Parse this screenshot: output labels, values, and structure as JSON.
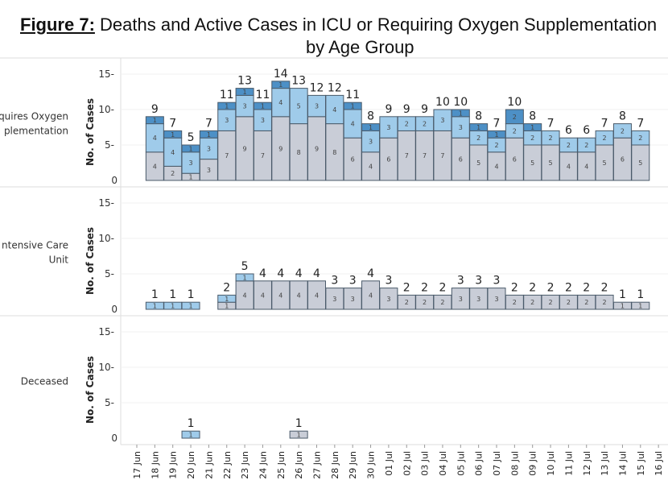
{
  "title": {
    "figure": "Figure 7:",
    "line1": " Deaths and Active Cases in ICU or Requiring Oxygen Supplementation",
    "line2": "by Age Group"
  },
  "colors": {
    "segment_1": "#c9cdd7",
    "segment_2": "#9fcbea",
    "segment_3": "#4d90c6"
  },
  "chart_data": {
    "type": "bar",
    "stacked": true,
    "dates": [
      "17 Jun",
      "18 Jun",
      "19 Jun",
      "20 Jun",
      "21 Jun",
      "22 Jun",
      "23 Jun",
      "24 Jun",
      "25 Jun",
      "26 Jun",
      "27 Jun",
      "28 Jun",
      "29 Jun",
      "30 Jun",
      "01 Jul",
      "02 Jul",
      "03 Jul",
      "04 Jul",
      "05 Jul",
      "06 Jul",
      "07 Jul",
      "08 Jul",
      "09 Jul",
      "10 Jul",
      "11 Jul",
      "12 Jul",
      "13 Jul",
      "14 Jul",
      "15 Jul",
      "16 Jul"
    ],
    "ylabel": "No. of Cases",
    "yticks": [
      0,
      5,
      10,
      15
    ],
    "ylim": [
      0,
      16
    ],
    "panels": [
      {
        "label_lines": [
          "quires Oxygen",
          "plementation"
        ],
        "stacks": [
          [
            0,
            0,
            0
          ],
          [
            4,
            4,
            1
          ],
          [
            2,
            4,
            1
          ],
          [
            1,
            3,
            1
          ],
          [
            3,
            3,
            1
          ],
          [
            7,
            3,
            1
          ],
          [
            9,
            3,
            1
          ],
          [
            7,
            3,
            1
          ],
          [
            9,
            4,
            1
          ],
          [
            8,
            5,
            0
          ],
          [
            9,
            3,
            0
          ],
          [
            8,
            4,
            0
          ],
          [
            6,
            4,
            1
          ],
          [
            4,
            3,
            1
          ],
          [
            6,
            3,
            0
          ],
          [
            7,
            2,
            0
          ],
          [
            7,
            2,
            0
          ],
          [
            7,
            3,
            0
          ],
          [
            6,
            3,
            1
          ],
          [
            5,
            2,
            1
          ],
          [
            4,
            2,
            1
          ],
          [
            6,
            2,
            2
          ],
          [
            5,
            2,
            1
          ],
          [
            5,
            2,
            0
          ],
          [
            4,
            2,
            0
          ],
          [
            4,
            2,
            0
          ],
          [
            5,
            2,
            0
          ],
          [
            6,
            2,
            0
          ],
          [
            5,
            2,
            0
          ],
          [
            0,
            0,
            0
          ]
        ]
      },
      {
        "label_lines": [
          "ntensive Care",
          "Unit"
        ],
        "stacks": [
          [
            0,
            0,
            0
          ],
          [
            0,
            1,
            0
          ],
          [
            0,
            1,
            0
          ],
          [
            0,
            1,
            0
          ],
          [
            0,
            0,
            0
          ],
          [
            1,
            1,
            0
          ],
          [
            4,
            1,
            0
          ],
          [
            4,
            0,
            0
          ],
          [
            4,
            0,
            0
          ],
          [
            4,
            0,
            0
          ],
          [
            4,
            0,
            0
          ],
          [
            3,
            0,
            0
          ],
          [
            3,
            0,
            0
          ],
          [
            4,
            0,
            0
          ],
          [
            3,
            0,
            0
          ],
          [
            2,
            0,
            0
          ],
          [
            2,
            0,
            0
          ],
          [
            2,
            0,
            0
          ],
          [
            3,
            0,
            0
          ],
          [
            3,
            0,
            0
          ],
          [
            3,
            0,
            0
          ],
          [
            2,
            0,
            0
          ],
          [
            2,
            0,
            0
          ],
          [
            2,
            0,
            0
          ],
          [
            2,
            0,
            0
          ],
          [
            2,
            0,
            0
          ],
          [
            2,
            0,
            0
          ],
          [
            1,
            0,
            0
          ],
          [
            1,
            0,
            0
          ],
          [
            0,
            0,
            0
          ]
        ]
      },
      {
        "label_lines": [
          "Deceased"
        ],
        "stacks": [
          [
            0,
            0,
            0
          ],
          [
            0,
            0,
            0
          ],
          [
            0,
            0,
            0
          ],
          [
            0,
            1,
            0
          ],
          [
            0,
            0,
            0
          ],
          [
            0,
            0,
            0
          ],
          [
            0,
            0,
            0
          ],
          [
            0,
            0,
            0
          ],
          [
            0,
            0,
            0
          ],
          [
            1,
            0,
            0
          ],
          [
            0,
            0,
            0
          ],
          [
            0,
            0,
            0
          ],
          [
            0,
            0,
            0
          ],
          [
            0,
            0,
            0
          ],
          [
            0,
            0,
            0
          ],
          [
            0,
            0,
            0
          ],
          [
            0,
            0,
            0
          ],
          [
            0,
            0,
            0
          ],
          [
            0,
            0,
            0
          ],
          [
            0,
            0,
            0
          ],
          [
            0,
            0,
            0
          ],
          [
            0,
            0,
            0
          ],
          [
            0,
            0,
            0
          ],
          [
            0,
            0,
            0
          ],
          [
            0,
            0,
            0
          ],
          [
            0,
            0,
            0
          ],
          [
            0,
            0,
            0
          ],
          [
            0,
            0,
            0
          ],
          [
            0,
            0,
            0
          ],
          [
            0,
            0,
            0
          ]
        ]
      }
    ]
  }
}
